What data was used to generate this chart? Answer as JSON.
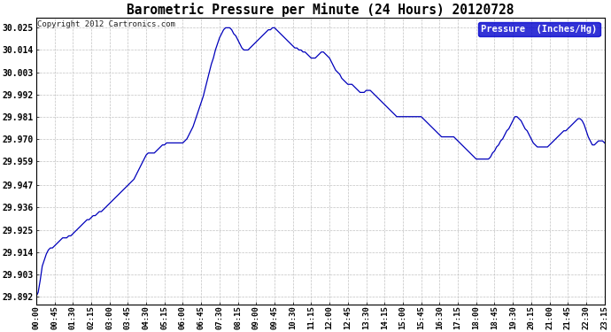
{
  "title": "Barometric Pressure per Minute (24 Hours) 20120728",
  "copyright": "Copyright 2012 Cartronics.com",
  "legend_label": "Pressure  (Inches/Hg)",
  "line_color": "#0000bb",
  "background_color": "#ffffff",
  "grid_color": "#bbbbbb",
  "legend_bg": "#0000cc",
  "legend_fg": "#ffffff",
  "yticks": [
    29.892,
    29.903,
    29.914,
    29.925,
    29.936,
    29.947,
    29.959,
    29.97,
    29.981,
    29.992,
    30.003,
    30.014,
    30.025
  ],
  "ylim": [
    29.888,
    30.03
  ],
  "xlim_minutes": 1395,
  "pressure_data": [
    [
      0,
      29.892
    ],
    [
      5,
      29.894
    ],
    [
      10,
      29.9
    ],
    [
      15,
      29.907
    ],
    [
      20,
      29.91
    ],
    [
      25,
      29.913
    ],
    [
      30,
      29.915
    ],
    [
      35,
      29.916
    ],
    [
      40,
      29.916
    ],
    [
      45,
      29.917
    ],
    [
      50,
      29.918
    ],
    [
      55,
      29.919
    ],
    [
      60,
      29.92
    ],
    [
      65,
      29.921
    ],
    [
      70,
      29.921
    ],
    [
      75,
      29.921
    ],
    [
      80,
      29.922
    ],
    [
      85,
      29.922
    ],
    [
      90,
      29.923
    ],
    [
      95,
      29.924
    ],
    [
      100,
      29.925
    ],
    [
      105,
      29.926
    ],
    [
      110,
      29.927
    ],
    [
      115,
      29.928
    ],
    [
      120,
      29.929
    ],
    [
      125,
      29.93
    ],
    [
      130,
      29.93
    ],
    [
      135,
      29.931
    ],
    [
      140,
      29.932
    ],
    [
      145,
      29.932
    ],
    [
      150,
      29.933
    ],
    [
      155,
      29.934
    ],
    [
      160,
      29.934
    ],
    [
      165,
      29.935
    ],
    [
      170,
      29.936
    ],
    [
      175,
      29.937
    ],
    [
      180,
      29.938
    ],
    [
      185,
      29.939
    ],
    [
      190,
      29.94
    ],
    [
      195,
      29.941
    ],
    [
      200,
      29.942
    ],
    [
      205,
      29.943
    ],
    [
      210,
      29.944
    ],
    [
      215,
      29.945
    ],
    [
      220,
      29.946
    ],
    [
      225,
      29.947
    ],
    [
      230,
      29.948
    ],
    [
      235,
      29.949
    ],
    [
      240,
      29.95
    ],
    [
      245,
      29.952
    ],
    [
      250,
      29.954
    ],
    [
      255,
      29.956
    ],
    [
      260,
      29.958
    ],
    [
      265,
      29.96
    ],
    [
      270,
      29.962
    ],
    [
      275,
      29.963
    ],
    [
      280,
      29.963
    ],
    [
      285,
      29.963
    ],
    [
      290,
      29.963
    ],
    [
      295,
      29.964
    ],
    [
      300,
      29.965
    ],
    [
      305,
      29.966
    ],
    [
      310,
      29.967
    ],
    [
      315,
      29.967
    ],
    [
      320,
      29.968
    ],
    [
      325,
      29.968
    ],
    [
      330,
      29.968
    ],
    [
      335,
      29.968
    ],
    [
      340,
      29.968
    ],
    [
      345,
      29.968
    ],
    [
      350,
      29.968
    ],
    [
      355,
      29.968
    ],
    [
      360,
      29.968
    ],
    [
      365,
      29.969
    ],
    [
      370,
      29.97
    ],
    [
      375,
      29.972
    ],
    [
      380,
      29.974
    ],
    [
      385,
      29.976
    ],
    [
      390,
      29.979
    ],
    [
      395,
      29.982
    ],
    [
      400,
      29.985
    ],
    [
      405,
      29.988
    ],
    [
      410,
      29.991
    ],
    [
      415,
      29.995
    ],
    [
      420,
      29.999
    ],
    [
      425,
      30.003
    ],
    [
      430,
      30.007
    ],
    [
      435,
      30.01
    ],
    [
      440,
      30.014
    ],
    [
      445,
      30.017
    ],
    [
      450,
      30.02
    ],
    [
      455,
      30.022
    ],
    [
      460,
      30.024
    ],
    [
      465,
      30.025
    ],
    [
      470,
      30.025
    ],
    [
      475,
      30.025
    ],
    [
      480,
      30.024
    ],
    [
      485,
      30.022
    ],
    [
      490,
      30.021
    ],
    [
      495,
      30.019
    ],
    [
      500,
      30.017
    ],
    [
      505,
      30.015
    ],
    [
      510,
      30.014
    ],
    [
      515,
      30.014
    ],
    [
      520,
      30.014
    ],
    [
      525,
      30.015
    ],
    [
      530,
      30.016
    ],
    [
      535,
      30.017
    ],
    [
      540,
      30.018
    ],
    [
      545,
      30.019
    ],
    [
      550,
      30.02
    ],
    [
      555,
      30.021
    ],
    [
      560,
      30.022
    ],
    [
      565,
      30.023
    ],
    [
      570,
      30.024
    ],
    [
      575,
      30.024
    ],
    [
      580,
      30.025
    ],
    [
      585,
      30.025
    ],
    [
      590,
      30.024
    ],
    [
      595,
      30.023
    ],
    [
      600,
      30.022
    ],
    [
      605,
      30.021
    ],
    [
      610,
      30.02
    ],
    [
      615,
      30.019
    ],
    [
      620,
      30.018
    ],
    [
      625,
      30.017
    ],
    [
      630,
      30.016
    ],
    [
      635,
      30.015
    ],
    [
      640,
      30.015
    ],
    [
      645,
      30.014
    ],
    [
      650,
      30.014
    ],
    [
      655,
      30.013
    ],
    [
      660,
      30.013
    ],
    [
      665,
      30.012
    ],
    [
      670,
      30.011
    ],
    [
      675,
      30.01
    ],
    [
      680,
      30.01
    ],
    [
      685,
      30.01
    ],
    [
      690,
      30.011
    ],
    [
      695,
      30.012
    ],
    [
      700,
      30.013
    ],
    [
      705,
      30.013
    ],
    [
      710,
      30.012
    ],
    [
      715,
      30.011
    ],
    [
      720,
      30.01
    ],
    [
      725,
      30.008
    ],
    [
      730,
      30.006
    ],
    [
      735,
      30.004
    ],
    [
      740,
      30.003
    ],
    [
      745,
      30.002
    ],
    [
      750,
      30.0
    ],
    [
      755,
      29.999
    ],
    [
      760,
      29.998
    ],
    [
      765,
      29.997
    ],
    [
      770,
      29.997
    ],
    [
      775,
      29.997
    ],
    [
      780,
      29.996
    ],
    [
      785,
      29.995
    ],
    [
      790,
      29.994
    ],
    [
      795,
      29.993
    ],
    [
      800,
      29.993
    ],
    [
      805,
      29.993
    ],
    [
      810,
      29.994
    ],
    [
      815,
      29.994
    ],
    [
      820,
      29.994
    ],
    [
      825,
      29.993
    ],
    [
      830,
      29.992
    ],
    [
      835,
      29.991
    ],
    [
      840,
      29.99
    ],
    [
      845,
      29.989
    ],
    [
      850,
      29.988
    ],
    [
      855,
      29.987
    ],
    [
      860,
      29.986
    ],
    [
      865,
      29.985
    ],
    [
      870,
      29.984
    ],
    [
      875,
      29.983
    ],
    [
      880,
      29.982
    ],
    [
      885,
      29.981
    ],
    [
      890,
      29.981
    ],
    [
      895,
      29.981
    ],
    [
      900,
      29.981
    ],
    [
      905,
      29.981
    ],
    [
      910,
      29.981
    ],
    [
      915,
      29.981
    ],
    [
      920,
      29.981
    ],
    [
      925,
      29.981
    ],
    [
      930,
      29.981
    ],
    [
      935,
      29.981
    ],
    [
      940,
      29.981
    ],
    [
      945,
      29.981
    ],
    [
      950,
      29.98
    ],
    [
      955,
      29.979
    ],
    [
      960,
      29.978
    ],
    [
      965,
      29.977
    ],
    [
      970,
      29.976
    ],
    [
      975,
      29.975
    ],
    [
      980,
      29.974
    ],
    [
      985,
      29.973
    ],
    [
      990,
      29.972
    ],
    [
      995,
      29.971
    ],
    [
      1000,
      29.971
    ],
    [
      1005,
      29.971
    ],
    [
      1010,
      29.971
    ],
    [
      1015,
      29.971
    ],
    [
      1020,
      29.971
    ],
    [
      1025,
      29.971
    ],
    [
      1030,
      29.97
    ],
    [
      1035,
      29.969
    ],
    [
      1040,
      29.968
    ],
    [
      1045,
      29.967
    ],
    [
      1050,
      29.966
    ],
    [
      1055,
      29.965
    ],
    [
      1060,
      29.964
    ],
    [
      1065,
      29.963
    ],
    [
      1070,
      29.962
    ],
    [
      1075,
      29.961
    ],
    [
      1080,
      29.96
    ],
    [
      1085,
      29.96
    ],
    [
      1090,
      29.96
    ],
    [
      1095,
      29.96
    ],
    [
      1100,
      29.96
    ],
    [
      1105,
      29.96
    ],
    [
      1110,
      29.96
    ],
    [
      1115,
      29.961
    ],
    [
      1120,
      29.963
    ],
    [
      1125,
      29.964
    ],
    [
      1130,
      29.966
    ],
    [
      1135,
      29.967
    ],
    [
      1140,
      29.969
    ],
    [
      1145,
      29.97
    ],
    [
      1150,
      29.972
    ],
    [
      1155,
      29.974
    ],
    [
      1160,
      29.975
    ],
    [
      1165,
      29.977
    ],
    [
      1170,
      29.979
    ],
    [
      1175,
      29.981
    ],
    [
      1180,
      29.981
    ],
    [
      1185,
      29.98
    ],
    [
      1190,
      29.979
    ],
    [
      1195,
      29.977
    ],
    [
      1200,
      29.975
    ],
    [
      1205,
      29.974
    ],
    [
      1210,
      29.972
    ],
    [
      1215,
      29.97
    ],
    [
      1220,
      29.968
    ],
    [
      1225,
      29.967
    ],
    [
      1230,
      29.966
    ],
    [
      1235,
      29.966
    ],
    [
      1240,
      29.966
    ],
    [
      1245,
      29.966
    ],
    [
      1250,
      29.966
    ],
    [
      1255,
      29.966
    ],
    [
      1260,
      29.967
    ],
    [
      1265,
      29.968
    ],
    [
      1270,
      29.969
    ],
    [
      1275,
      29.97
    ],
    [
      1280,
      29.971
    ],
    [
      1285,
      29.972
    ],
    [
      1290,
      29.973
    ],
    [
      1295,
      29.974
    ],
    [
      1300,
      29.974
    ],
    [
      1305,
      29.975
    ],
    [
      1310,
      29.976
    ],
    [
      1315,
      29.977
    ],
    [
      1320,
      29.978
    ],
    [
      1325,
      29.979
    ],
    [
      1330,
      29.98
    ],
    [
      1335,
      29.98
    ],
    [
      1340,
      29.979
    ],
    [
      1345,
      29.977
    ],
    [
      1350,
      29.974
    ],
    [
      1355,
      29.971
    ],
    [
      1360,
      29.969
    ],
    [
      1365,
      29.967
    ],
    [
      1370,
      29.967
    ],
    [
      1375,
      29.968
    ],
    [
      1380,
      29.969
    ],
    [
      1385,
      29.969
    ],
    [
      1390,
      29.969
    ],
    [
      1395,
      29.968
    ]
  ]
}
